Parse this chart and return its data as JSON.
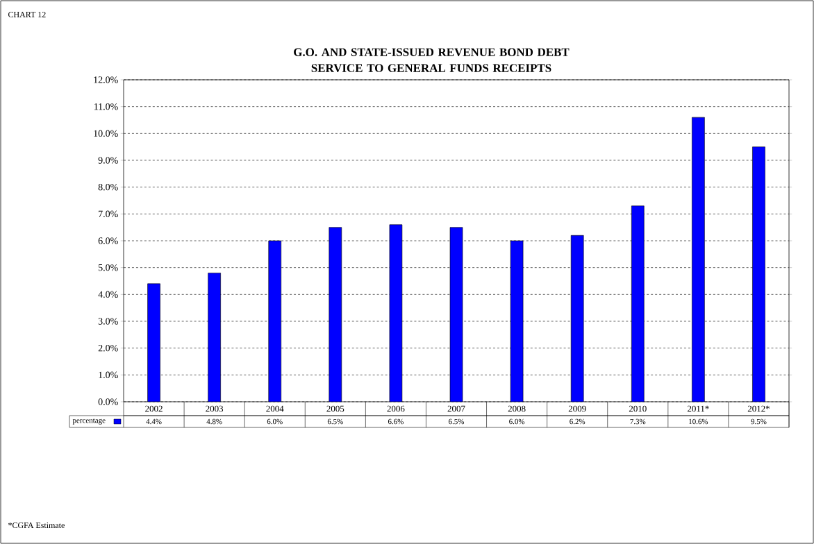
{
  "chart_data": {
    "type": "bar",
    "title": "G.O. AND STATE-ISSUED REVENUE BOND DEBT SERVICE TO GENERAL FUNDS RECEIPTS",
    "categories": [
      "2002",
      "2003",
      "2004",
      "2005",
      "2006",
      "2007",
      "2008",
      "2009",
      "2010",
      "2011*",
      "2012*"
    ],
    "series": [
      {
        "name": "percentage",
        "color": "#0000ff",
        "values": [
          4.4,
          4.8,
          6.0,
          6.5,
          6.6,
          6.5,
          6.0,
          6.2,
          7.3,
          10.6,
          9.5
        ],
        "value_labels": [
          "4.4%",
          "4.8%",
          "6.0%",
          "6.5%",
          "6.6%",
          "6.5%",
          "6.0%",
          "6.2%",
          "7.3%",
          "10.6%",
          "9.5%"
        ]
      }
    ],
    "ylim": [
      0,
      12
    ],
    "yticks": [
      {
        "value": 0,
        "label": "0.0%"
      },
      {
        "value": 1,
        "label": "1.0%"
      },
      {
        "value": 2,
        "label": "2.0%"
      },
      {
        "value": 3,
        "label": "3.0%"
      },
      {
        "value": 4,
        "label": "4.0%"
      },
      {
        "value": 5,
        "label": "5.0%"
      },
      {
        "value": 6,
        "label": "6.0%"
      },
      {
        "value": 7,
        "label": "7.0%"
      },
      {
        "value": 8,
        "label": "8.0%"
      },
      {
        "value": 9,
        "label": "9.0%"
      },
      {
        "value": 10,
        "label": "10.0%"
      },
      {
        "value": 11,
        "label": "11.0%"
      },
      {
        "value": 12,
        "label": "12.0%"
      }
    ],
    "grid": "y",
    "legend": "bottom",
    "annotations": [
      "CHART 12",
      "*CGFA Estimate"
    ]
  }
}
